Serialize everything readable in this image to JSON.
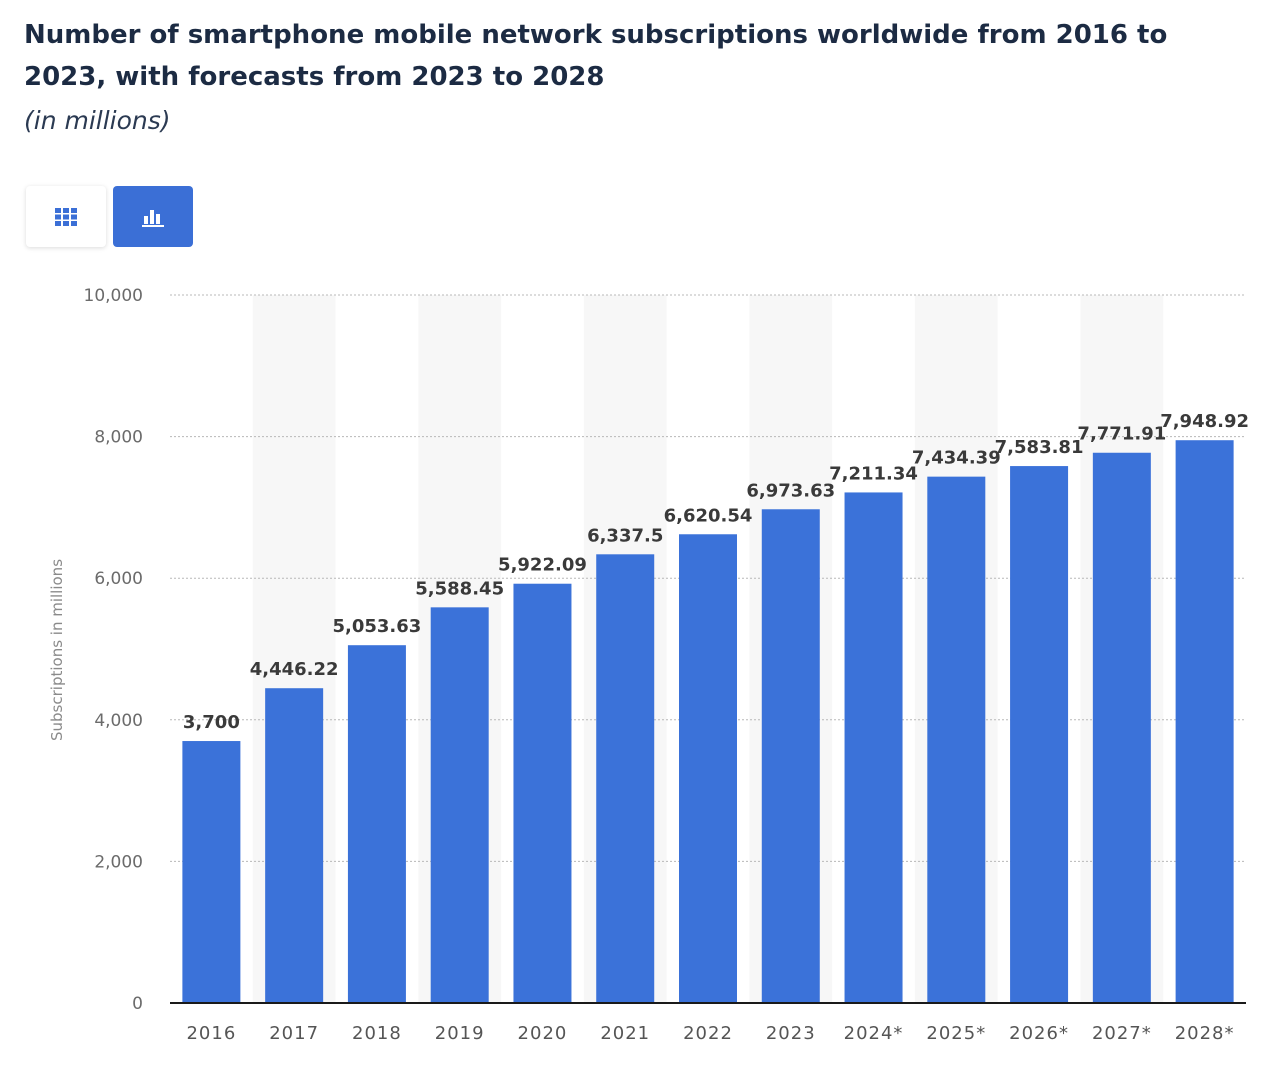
{
  "header": {
    "title": "Number of smartphone mobile network subscriptions worldwide from 2016 to 2023, with forecasts from 2023 to 2028",
    "subtitle": "(in millions)"
  },
  "toolbar": {
    "table_icon": "table-grid-icon",
    "chart_icon": "bar-chart-icon",
    "active_view": "chart",
    "accent_color": "#3b6fd6"
  },
  "chart_data": {
    "type": "bar",
    "categories": [
      "2016",
      "2017",
      "2018",
      "2019",
      "2020",
      "2021",
      "2022",
      "2023",
      "2024*",
      "2025*",
      "2026*",
      "2027*",
      "2028*"
    ],
    "values": [
      3700,
      4446.22,
      5053.63,
      5588.45,
      5922.09,
      6337.5,
      6620.54,
      6973.63,
      7211.34,
      7434.39,
      7583.81,
      7771.91,
      7948.92
    ],
    "value_labels": [
      "3,700",
      "4,446.22",
      "5,053.63",
      "5,588.45",
      "5,922.09",
      "6,337.5",
      "6,620.54",
      "6,973.63",
      "7,211.34",
      "7,434.39",
      "7,583.81",
      "7,771.91",
      "7,948.92"
    ],
    "ylabel": "Subscriptions in millions",
    "ylim": [
      0,
      10000
    ],
    "yticks": [
      0,
      2000,
      4000,
      6000,
      8000,
      10000
    ],
    "ytick_labels": [
      "0",
      "2,000",
      "4,000",
      "6,000",
      "8,000",
      "10,000"
    ],
    "grid": true,
    "bar_color": "#3b72d9",
    "band_color": "#f7f7f7"
  }
}
